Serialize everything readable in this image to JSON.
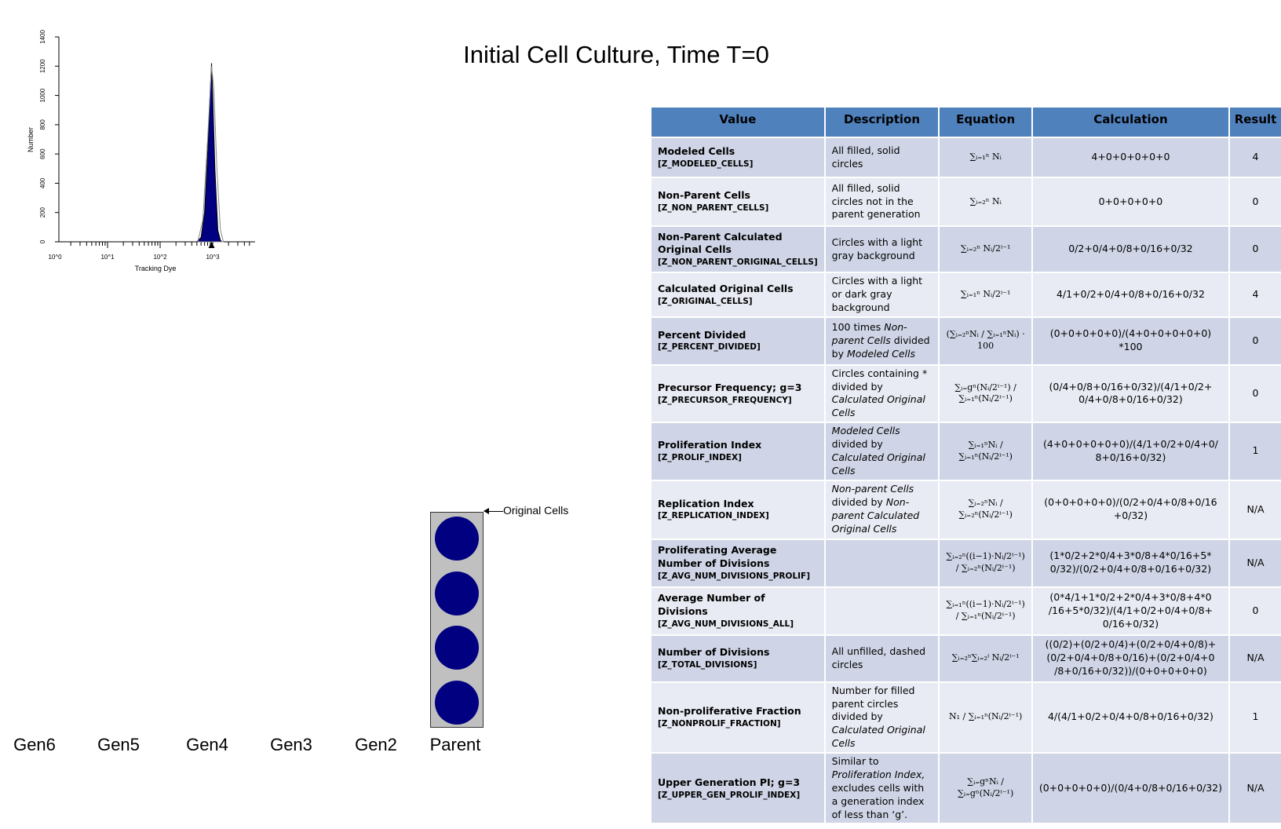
{
  "title": "Initial Cell Culture, Time T=0",
  "chart_data": {
    "type": "area",
    "xlabel": "Tracking Dye",
    "ylabel": "Number",
    "xscale": "log",
    "xlim": [
      1,
      5000
    ],
    "ylim": [
      0,
      1400
    ],
    "x_ticks": [
      "10^0",
      "10^1",
      "10^2",
      "10^3"
    ],
    "y_ticks": [
      0,
      200,
      400,
      600,
      800,
      1000,
      1200,
      1400
    ],
    "series": [
      {
        "name": "filled",
        "color": "#000080",
        "x": [
          500,
          600,
          700,
          800,
          900,
          950,
          1000,
          1100,
          1250,
          1400,
          1500
        ],
        "y": [
          0,
          30,
          200,
          600,
          1050,
          1220,
          1000,
          500,
          80,
          10,
          0
        ]
      },
      {
        "name": "outline",
        "color": "#888888",
        "x": [
          520,
          650,
          800,
          950,
          1050,
          1200,
          1400,
          1600
        ],
        "y": [
          0,
          150,
          700,
          1200,
          1050,
          500,
          80,
          0
        ]
      }
    ],
    "marker": {
      "x": 950,
      "label": "peak marker"
    }
  },
  "generations": [
    "Gen6",
    "Gen5",
    "Gen4",
    "Gen3",
    "Gen2",
    "Parent"
  ],
  "parent_cells": 4,
  "original_cells_label": "Original Cells",
  "table": {
    "headers": [
      "Value",
      "Description",
      "Equation",
      "Calculation",
      "Result"
    ],
    "rows": [
      {
        "name": "Modeled Cells",
        "code": "[Z_MODELED_CELLS]",
        "desc": [
          {
            "t": "All filled, solid circles"
          }
        ],
        "eq": "∑ᵢ₌₁ⁿ Nᵢ",
        "calc": "4+0+0+0+0+0",
        "result": "4"
      },
      {
        "name": "Non-Parent Cells",
        "code": "[Z_NON_PARENT_CELLS]",
        "desc": [
          {
            "t": "All filled, solid circles not in the parent generation"
          }
        ],
        "eq": "∑ᵢ₌₂ⁿ Nᵢ",
        "calc": "0+0+0+0+0",
        "result": "0"
      },
      {
        "name": "Non-Parent Calculated Original Cells",
        "code": "[Z_NON_PARENT_ORIGINAL_CELLS]",
        "desc": [
          {
            "t": "Circles with a light gray background"
          }
        ],
        "eq": "∑ᵢ₌₂ⁿ Nᵢ/2ⁱ⁻¹",
        "calc": "0/2+0/4+0/8+0/16+0/32",
        "result": "0"
      },
      {
        "name": "Calculated Original Cells",
        "code": "[Z_ORIGINAL_CELLS]",
        "desc": [
          {
            "t": "Circles with a light or dark gray background"
          }
        ],
        "eq": "∑ᵢ₌₁ⁿ Nᵢ/2ⁱ⁻¹",
        "calc": "4/1+0/2+0/4+0/8+0/16+0/32",
        "result": "4"
      },
      {
        "name": "Percent Divided",
        "code": "[Z_PERCENT_DIVIDED]",
        "desc": [
          {
            "t": "100 times "
          },
          {
            "t": "Non-parent Cells",
            "i": true
          },
          {
            "t": " divided by "
          },
          {
            "t": "Modeled Cells",
            "i": true
          }
        ],
        "eq": "(∑ᵢ₌₂ⁿNᵢ / ∑ᵢ₌₁ⁿNᵢ) · 100",
        "calc": "(0+0+0+0+0)/(4+0+0+0+0+0) *100",
        "result": "0"
      },
      {
        "name": "Precursor Frequency; g=3",
        "code": "[Z_PRECURSOR_FREQUENCY]",
        "desc": [
          {
            "t": "Circles containing * divided by "
          },
          {
            "t": "Calculated Original Cells",
            "i": true
          }
        ],
        "eq": "∑ᵢ₌gⁿ(Nᵢ/2ⁱ⁻¹) / ∑ᵢ₌₁ⁿ(Nᵢ/2ⁱ⁻¹)",
        "calc": "(0/4+0/8+0/16+0/32)/(4/1+0/2+ 0/4+0/8+0/16+0/32)",
        "result": "0"
      },
      {
        "name": "Proliferation Index",
        "code": "[Z_PROLIF_INDEX]",
        "desc": [
          {
            "t": "Modeled Cells",
            "i": true
          },
          {
            "t": " divided by "
          },
          {
            "t": "Calculated Original Cells",
            "i": true
          }
        ],
        "eq": "∑ᵢ₌₁ⁿNᵢ / ∑ᵢ₌₁ⁿ(Nᵢ/2ⁱ⁻¹)",
        "calc": "(4+0+0+0+0+0)/(4/1+0/2+0/4+0/ 8+0/16+0/32)",
        "result": "1"
      },
      {
        "name": "Replication Index",
        "code": "[Z_REPLICATION_INDEX]",
        "desc": [
          {
            "t": "Non-parent Cells",
            "i": true
          },
          {
            "t": " divided by "
          },
          {
            "t": "Non-parent Calculated Original Cells",
            "i": true
          }
        ],
        "eq": "∑ᵢ₌₂ⁿNᵢ / ∑ᵢ₌₂ⁿ(Nᵢ/2ⁱ⁻¹)",
        "calc": "(0+0+0+0+0)/(0/2+0/4+0/8+0/16 +0/32)",
        "result": "N/A"
      },
      {
        "name": "Proliferating Average Number of Divisions",
        "code": "[Z_AVG_NUM_DIVISIONS_PROLIF]",
        "desc": [],
        "eq": "∑ᵢ₌₂ⁿ((i−1)·Nᵢ/2ⁱ⁻¹) / ∑ᵢ₌₂ⁿ(Nᵢ/2ⁱ⁻¹)",
        "calc": "(1*0/2+2*0/4+3*0/8+4*0/16+5* 0/32)/(0/2+0/4+0/8+0/16+0/32)",
        "result": "N/A"
      },
      {
        "name": "Average Number of Divisions",
        "code": "[Z_AVG_NUM_DIVISIONS_ALL]",
        "desc": [],
        "eq": "∑ᵢ₌₁ⁿ((i−1)·Nᵢ/2ⁱ⁻¹) / ∑ᵢ₌₁ⁿ(Nᵢ/2ⁱ⁻¹)",
        "calc": "(0*4/1+1*0/2+2*0/4+3*0/8+4*0 /16+5*0/32)/(4/1+0/2+0/4+0/8+ 0/16+0/32)",
        "result": "0"
      },
      {
        "name": "Number of Divisions",
        "code": "[Z_TOTAL_DIVISIONS]",
        "desc": [
          {
            "t": "All unfilled, dashed circles"
          }
        ],
        "eq": "∑ᵢ₌₂ⁿ∑ᵢ₌₂ⁱ Nᵢ/2ⁱ⁻¹",
        "calc": "((0/2)+(0/2+0/4)+(0/2+0/4+0/8)+ (0/2+0/4+0/8+0/16)+(0/2+0/4+0 /8+0/16+0/32))/(0+0+0+0+0)",
        "result": "N/A"
      },
      {
        "name": "Non-proliferative Fraction",
        "code": "[Z_NONPROLIF_FRACTION]",
        "desc": [
          {
            "t": "Number for filled parent circles divided by "
          },
          {
            "t": "Calculated Original Cells",
            "i": true
          }
        ],
        "eq": "N₁ / ∑ᵢ₌₁ⁿ(Nᵢ/2ⁱ⁻¹)",
        "calc": "4/(4/1+0/2+0/4+0/8+0/16+0/32)",
        "result": "1"
      },
      {
        "name": "Upper Generation PI; g=3",
        "code": "[Z_UPPER_GEN_PROLIF_INDEX]",
        "desc": [
          {
            "t": "Similar to "
          },
          {
            "t": "Proliferation Index,",
            "i": true
          },
          {
            "t": " excludes cells with a generation index of less than ‘g’."
          }
        ],
        "eq": "∑ᵢ₌gⁿNᵢ / ∑ᵢ₌gⁿ(Nᵢ/2ⁱ⁻¹)",
        "calc": "(0+0+0+0+0)/(0/4+0/8+0/16+0/32)",
        "result": "N/A"
      }
    ]
  }
}
